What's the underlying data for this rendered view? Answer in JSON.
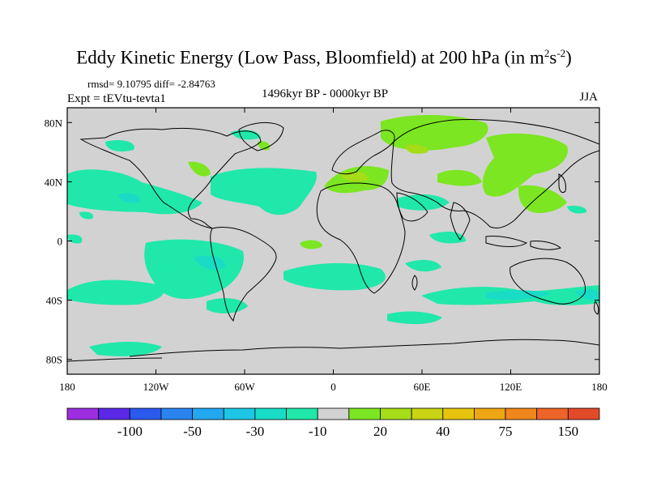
{
  "title": {
    "main": "Eddy Kinetic Energy (Low Pass, Bloomfield) at 200 hPa (in m",
    "sup1": "2",
    "mid": "s",
    "sup2": "-2",
    "end": ")"
  },
  "stats": "rmsd= 9.10795 diff= -2.84763",
  "expt": "Expt = tEVtu-tevta1",
  "period": "1496kyr BP - 0000kyr BP",
  "season": "JJA",
  "map": {
    "background_color": "#d2d2d2",
    "lon_ticks": [
      "180",
      "120W",
      "60W",
      "0",
      "60E",
      "120E",
      "180"
    ],
    "lat_ticks": [
      "80N",
      "40N",
      "0",
      "40S",
      "80S"
    ],
    "lon_values": [
      -180,
      -120,
      -60,
      0,
      60,
      120,
      180
    ],
    "lat_values": [
      80,
      40,
      0,
      -40,
      -80
    ]
  },
  "colorbar": {
    "colors": [
      "#9c2ee0",
      "#5a28e6",
      "#2a5aee",
      "#2a84f0",
      "#22a8f0",
      "#1ec6e6",
      "#18dcc6",
      "#20e8aa",
      "#d2d2d2",
      "#7ce622",
      "#a6dc18",
      "#c8d414",
      "#e6c40e",
      "#eea612",
      "#f0861c",
      "#ee6428",
      "#e24a2a"
    ],
    "labels": [
      "-100",
      "-50",
      "-30",
      "-10",
      "20",
      "40",
      "75",
      "150"
    ]
  }
}
